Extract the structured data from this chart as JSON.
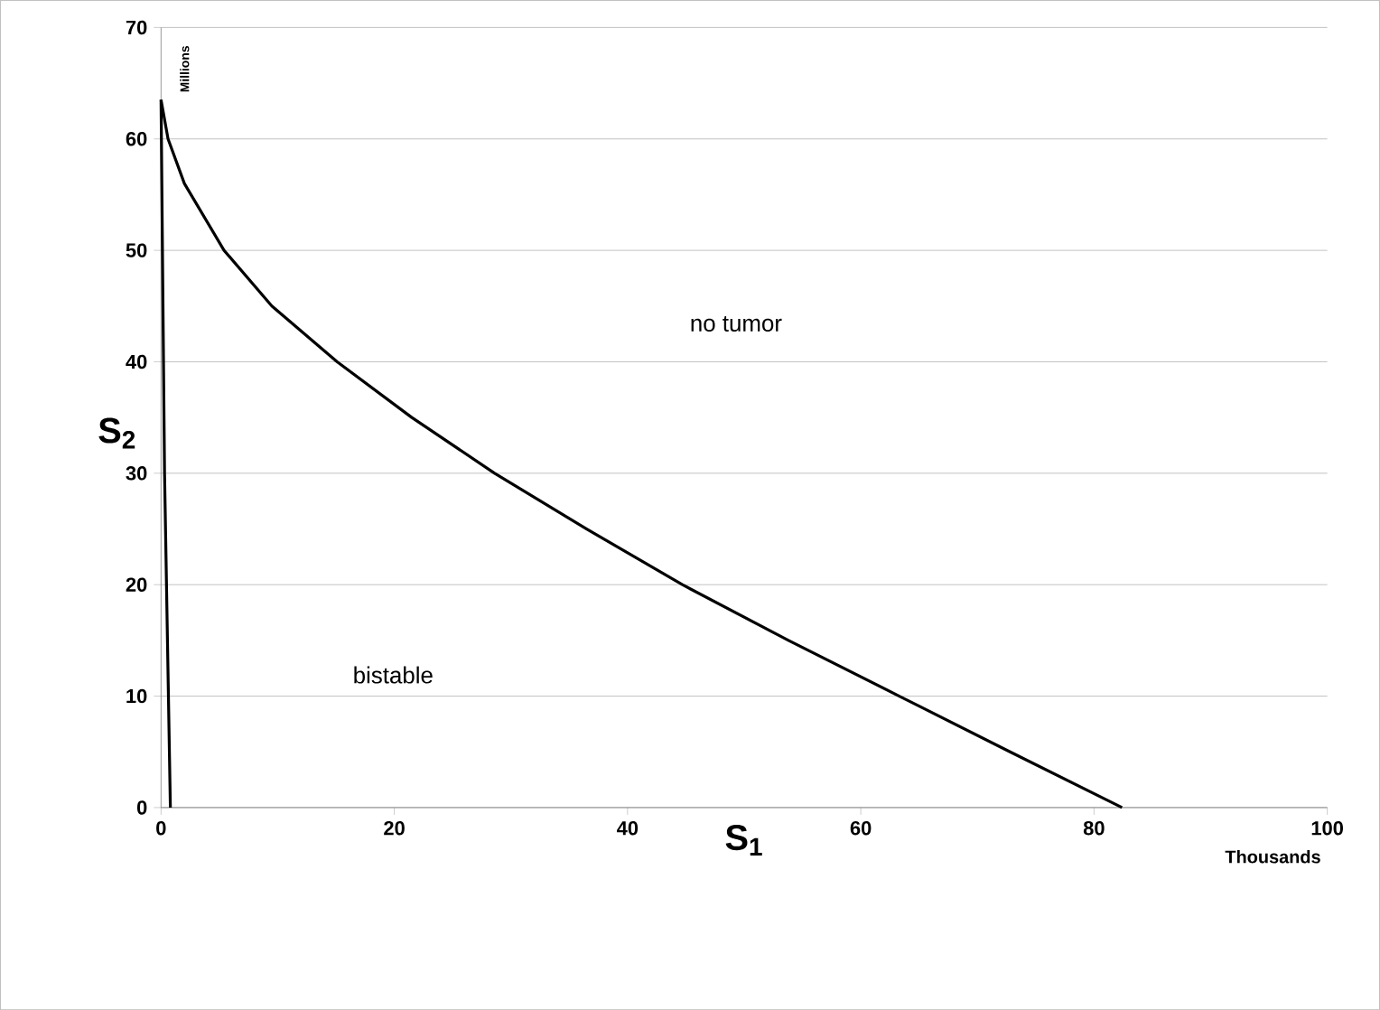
{
  "chart_data": {
    "type": "line",
    "xlabel": "S$_{1}$",
    "ylabel": "S$_{2}$",
    "xlim": [
      0,
      100
    ],
    "xticks": [
      0,
      20,
      40,
      60,
      80,
      100
    ],
    "ylim": [
      0,
      70
    ],
    "yticks": [
      0,
      10,
      20,
      30,
      40,
      50,
      60,
      70
    ],
    "grid": "y",
    "marker": "none",
    "line_style": "solid",
    "annotations": [
      "Millions",
      "Thousands",
      "no tumor",
      "bistable"
    ],
    "series": [
      {
        "color": "#000000",
        "x": [
          0,
          0.6,
          2,
          5.4,
          9.5,
          15.1,
          21.5,
          28.6,
          36.5,
          44.7,
          53.8,
          63.3,
          72.8,
          82.4
        ],
        "values": [
          63.5,
          60,
          56,
          50,
          45,
          40,
          35,
          30,
          25,
          20,
          15,
          10,
          5,
          0
        ]
      },
      {
        "color": "#000000",
        "x": [
          0,
          0.3,
          0.8
        ],
        "values": [
          63.5,
          30,
          0
        ]
      }
    ]
  }
}
